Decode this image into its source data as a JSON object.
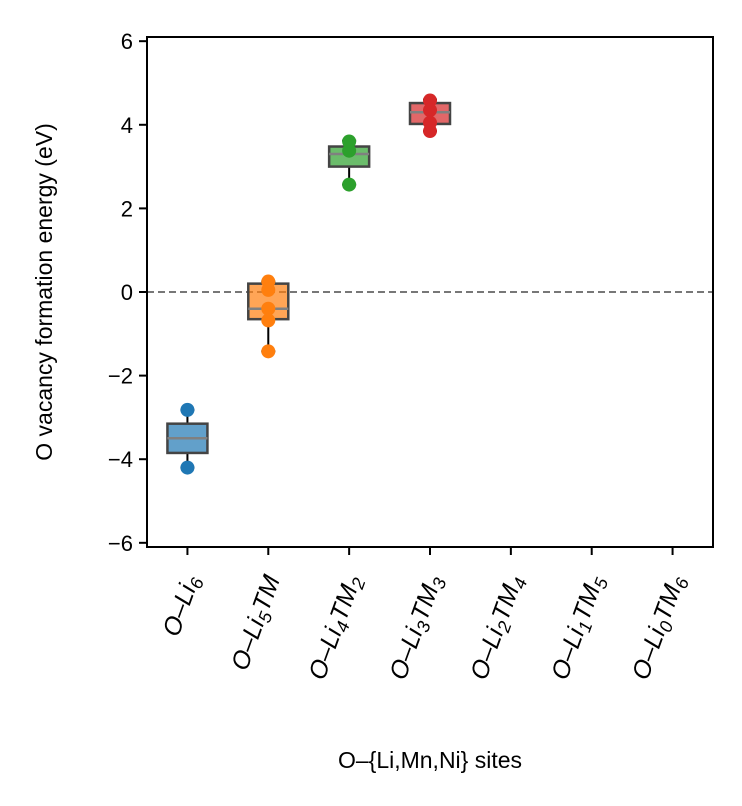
{
  "chart_data": {
    "type": "box",
    "title": "",
    "xlabel": "O–{Li,Mn,Ni} sites",
    "ylabel": "O vacancy formation energy (eV)",
    "ylim": [
      -6.1,
      6.1
    ],
    "yticks": [
      -6,
      -4,
      -2,
      0,
      2,
      4,
      6
    ],
    "ytick_labels": [
      "−6",
      "−4",
      "−2",
      "0",
      "2",
      "4",
      "6"
    ],
    "grid": false,
    "reference_line": {
      "y": 0,
      "style": "dashed",
      "color": "#777777"
    },
    "categories": [
      {
        "base": "O–Li",
        "sub1": "6",
        "mid": "",
        "sub2": ""
      },
      {
        "base": "O–Li",
        "sub1": "5",
        "mid": "TM",
        "sub2": ""
      },
      {
        "base": "O–Li",
        "sub1": "4",
        "mid": "TM",
        "sub2": "2"
      },
      {
        "base": "O–Li",
        "sub1": "3",
        "mid": "TM",
        "sub2": "3"
      },
      {
        "base": "O–Li",
        "sub1": "2",
        "mid": "TM",
        "sub2": "4"
      },
      {
        "base": "O–Li",
        "sub1": "1",
        "mid": "TM",
        "sub2": "5"
      },
      {
        "base": "O–Li",
        "sub1": "0",
        "mid": "TM",
        "sub2": "6"
      }
    ],
    "series": [
      {
        "color": "#1f77b4",
        "box": {
          "q1": -3.85,
          "median": -3.5,
          "q3": -3.15,
          "whisker_low": -4.2,
          "whisker_high": -2.82
        },
        "points": [
          -2.82,
          -4.2
        ]
      },
      {
        "color": "#ff7f0e",
        "box": {
          "q1": -0.65,
          "median": -0.4,
          "q3": 0.2,
          "whisker_low": -1.42,
          "whisker_high": 0.25
        },
        "points": [
          0.25,
          0.05,
          -0.4,
          -0.68,
          -1.42
        ]
      },
      {
        "color": "#2ca02c",
        "box": {
          "q1": 3.0,
          "median": 3.3,
          "q3": 3.48,
          "whisker_low": 2.57,
          "whisker_high": 3.62
        },
        "points": [
          3.6,
          3.38,
          2.57
        ]
      },
      {
        "color": "#d62728",
        "box": {
          "q1": 4.02,
          "median": 4.3,
          "q3": 4.52,
          "whisker_low": 3.85,
          "whisker_high": 4.6
        },
        "points": [
          4.58,
          4.35,
          4.05,
          3.85
        ]
      },
      {
        "color": "#9467bd",
        "box": null,
        "points": []
      },
      {
        "color": "#8c564b",
        "box": null,
        "points": []
      },
      {
        "color": "#e377c2",
        "box": null,
        "points": []
      }
    ]
  }
}
